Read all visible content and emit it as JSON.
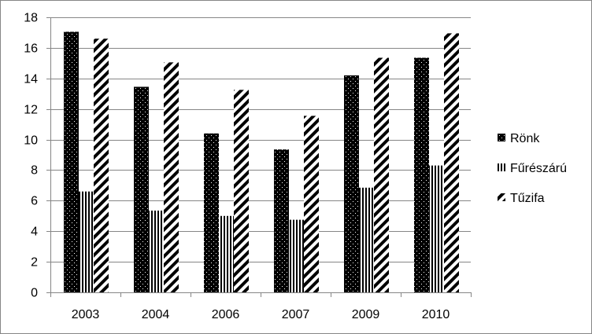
{
  "chart_data": {
    "type": "bar",
    "categories": [
      "2003",
      "2004",
      "2006",
      "2007",
      "2009",
      "2010"
    ],
    "series": [
      {
        "name": "Rönk",
        "values": [
          17.05,
          13.45,
          10.4,
          9.35,
          14.2,
          15.35
        ],
        "pattern": "dots-on-black"
      },
      {
        "name": "Fűrészárú",
        "values": [
          6.6,
          5.35,
          5.0,
          4.75,
          6.85,
          8.3
        ],
        "pattern": "vertical-stripes"
      },
      {
        "name": "Tűzifa",
        "values": [
          16.6,
          15.05,
          13.25,
          11.55,
          15.35,
          16.95
        ],
        "pattern": "diagonal-stripes"
      }
    ],
    "title": "",
    "xlabel": "",
    "ylabel": "",
    "ylim": [
      0,
      18
    ],
    "y_ticks": [
      "0",
      "2",
      "4",
      "6",
      "8",
      "10",
      "12",
      "14",
      "16",
      "18"
    ],
    "grid": true,
    "legend_position": "right",
    "colors": {
      "gridline": "#868686",
      "bar": "#000000",
      "background": "#ffffff"
    }
  }
}
